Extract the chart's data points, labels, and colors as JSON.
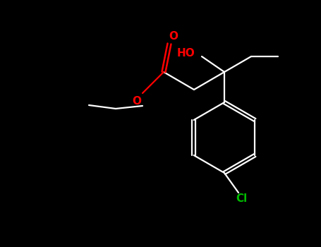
{
  "background_color": "#000000",
  "bond_color": "#ffffff",
  "oxygen_color": "#ff0000",
  "chlorine_color": "#00bb00",
  "figsize": [
    4.55,
    3.5
  ],
  "dpi": 100,
  "lw": 1.6,
  "label_ho": "HO",
  "label_o_carbonyl": "O",
  "label_o_ester": "O",
  "label_cl": "Cl",
  "font_size_labels": 11
}
